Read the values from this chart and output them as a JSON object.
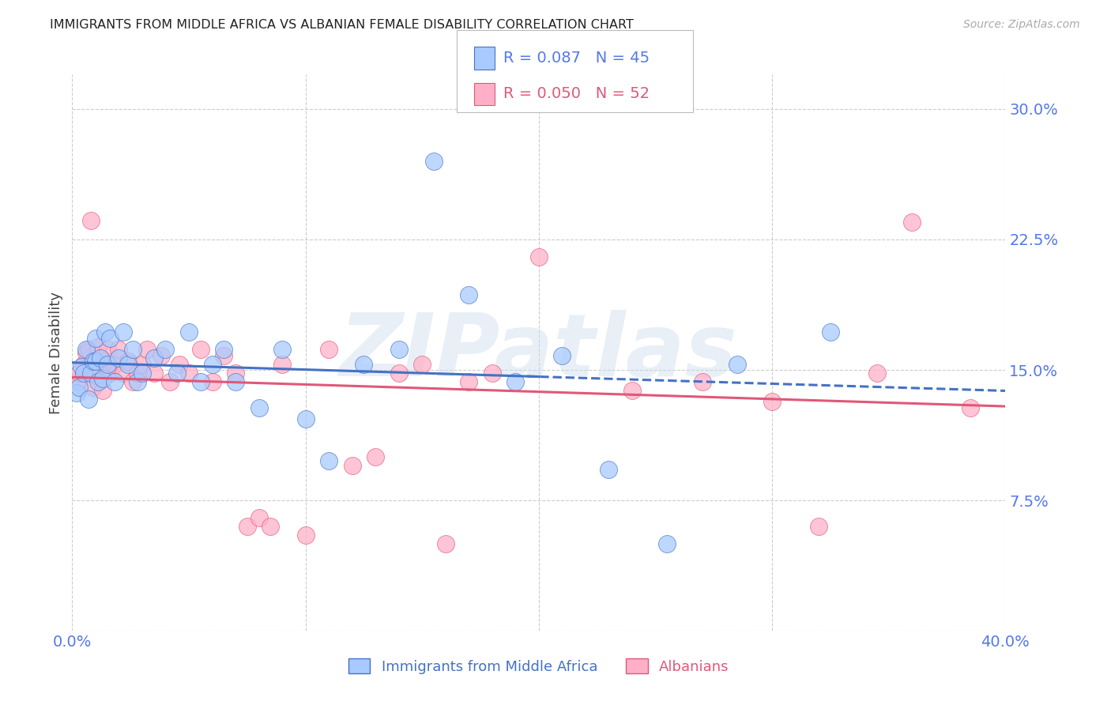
{
  "title": "IMMIGRANTS FROM MIDDLE AFRICA VS ALBANIAN FEMALE DISABILITY CORRELATION CHART",
  "source": "Source: ZipAtlas.com",
  "ylabel": "Female Disability",
  "xlim": [
    0.0,
    0.4
  ],
  "ylim": [
    0.0,
    0.32
  ],
  "ytick_vals": [
    0.0,
    0.075,
    0.15,
    0.225,
    0.3
  ],
  "ytick_labels": [
    "",
    "7.5%",
    "15.0%",
    "22.5%",
    "30.0%"
  ],
  "xtick_vals": [
    0.0,
    0.1,
    0.2,
    0.3,
    0.4
  ],
  "xtick_labels": [
    "0.0%",
    "",
    "",
    "",
    "40.0%"
  ],
  "series1_label": "Immigrants from Middle Africa",
  "series2_label": "Albanians",
  "series1_color": "#A8CAFE",
  "series2_color": "#FFB0C8",
  "trendline1_color": "#4472C4",
  "trendline2_color": "#E05878",
  "axis_label_color": "#5577EE",
  "grid_color": "#CCCCCC",
  "title_color": "#222222",
  "watermark": "ZIPatlas",
  "R1": "0.087",
  "N1": "45",
  "R2": "0.050",
  "N2": "52",
  "s1_x": [
    0.002,
    0.003,
    0.004,
    0.005,
    0.006,
    0.007,
    0.008,
    0.009,
    0.01,
    0.01,
    0.011,
    0.012,
    0.013,
    0.014,
    0.015,
    0.016,
    0.018,
    0.02,
    0.022,
    0.024,
    0.026,
    0.028,
    0.03,
    0.035,
    0.04,
    0.045,
    0.05,
    0.055,
    0.06,
    0.065,
    0.07,
    0.08,
    0.09,
    0.1,
    0.11,
    0.125,
    0.14,
    0.155,
    0.17,
    0.19,
    0.21,
    0.23,
    0.255,
    0.285,
    0.325
  ],
  "s1_y": [
    0.137,
    0.14,
    0.152,
    0.148,
    0.162,
    0.133,
    0.148,
    0.155,
    0.155,
    0.168,
    0.143,
    0.157,
    0.145,
    0.172,
    0.153,
    0.168,
    0.143,
    0.157,
    0.172,
    0.153,
    0.162,
    0.143,
    0.148,
    0.157,
    0.162,
    0.148,
    0.172,
    0.143,
    0.153,
    0.162,
    0.143,
    0.128,
    0.162,
    0.122,
    0.098,
    0.153,
    0.162,
    0.27,
    0.193,
    0.143,
    0.158,
    0.093,
    0.05,
    0.153,
    0.172
  ],
  "s2_x": [
    0.002,
    0.003,
    0.005,
    0.006,
    0.007,
    0.008,
    0.009,
    0.01,
    0.011,
    0.012,
    0.013,
    0.014,
    0.015,
    0.016,
    0.018,
    0.02,
    0.022,
    0.024,
    0.026,
    0.028,
    0.03,
    0.032,
    0.035,
    0.038,
    0.042,
    0.046,
    0.05,
    0.055,
    0.06,
    0.065,
    0.07,
    0.075,
    0.08,
    0.085,
    0.09,
    0.1,
    0.11,
    0.12,
    0.13,
    0.14,
    0.15,
    0.16,
    0.17,
    0.18,
    0.2,
    0.24,
    0.27,
    0.3,
    0.32,
    0.345,
    0.36,
    0.385
  ],
  "s2_y": [
    0.143,
    0.148,
    0.153,
    0.16,
    0.162,
    0.236,
    0.14,
    0.147,
    0.163,
    0.15,
    0.138,
    0.155,
    0.162,
    0.148,
    0.153,
    0.162,
    0.148,
    0.155,
    0.143,
    0.148,
    0.153,
    0.162,
    0.148,
    0.158,
    0.143,
    0.153,
    0.148,
    0.162,
    0.143,
    0.158,
    0.148,
    0.06,
    0.065,
    0.06,
    0.153,
    0.055,
    0.162,
    0.095,
    0.1,
    0.148,
    0.153,
    0.05,
    0.143,
    0.148,
    0.215,
    0.138,
    0.143,
    0.132,
    0.06,
    0.148,
    0.235,
    0.128
  ]
}
